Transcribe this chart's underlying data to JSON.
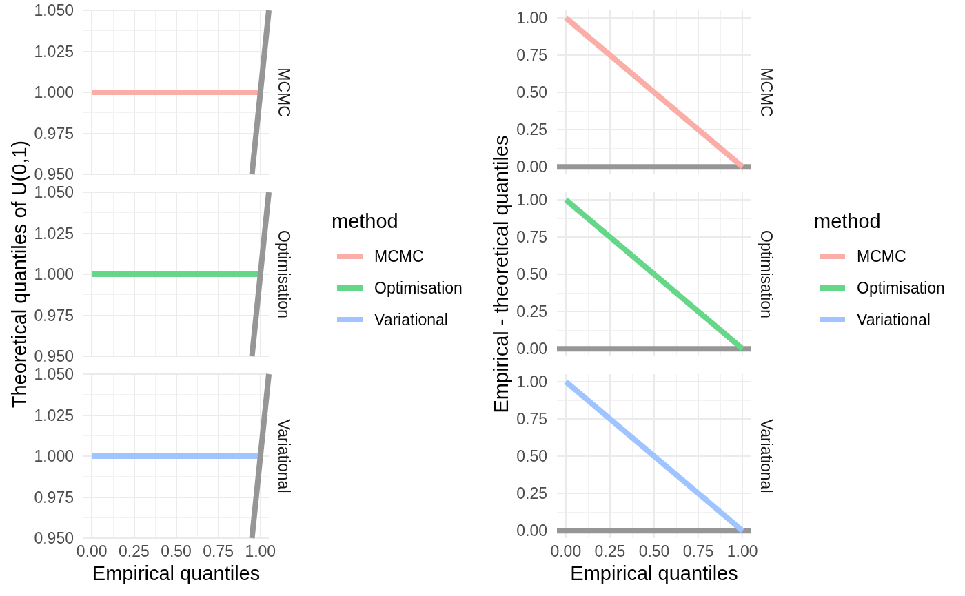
{
  "chart_data": [
    {
      "type": "line",
      "xlim": [
        -0.05,
        1.05
      ],
      "ylim": [
        0.95,
        1.05
      ],
      "yticks": [
        {
          "value": 0.95,
          "label": "0.950"
        },
        0.975,
        {
          "value": 1,
          "label": "1.000"
        },
        1.025,
        {
          "value": 1.05,
          "label": "1.050"
        }
      ],
      "grid": true,
      "marker": "none",
      "tick_labels": "y",
      "series": [
        {
          "name": "MCMC",
          "color": "#fbada7",
          "x": [
            0,
            1
          ],
          "values": [
            1,
            1
          ]
        },
        {
          "color": "#969696",
          "x": [
            0.95,
            1.05
          ],
          "values": [
            0.95,
            1.05
          ]
        }
      ]
    },
    {
      "type": "line",
      "ylabel": "Theoretical quantiles of U(0,1)",
      "legend": "right",
      "legend_title": "method",
      "xlim": [
        -0.05,
        1.05
      ],
      "ylim": [
        0.95,
        1.05
      ],
      "yticks": [
        {
          "value": 0.95,
          "label": "0.950"
        },
        0.975,
        {
          "value": 1,
          "label": "1.000"
        },
        1.025,
        {
          "value": 1.05,
          "label": "1.050"
        }
      ],
      "grid": true,
      "marker": "none",
      "tick_labels": "y",
      "series": [
        {
          "name": "MCMC",
          "color": "#fbada7",
          "values": [
            null,
            null
          ]
        },
        {
          "name": "Optimisation",
          "color": "#66d688",
          "x": [
            0,
            1
          ],
          "values": [
            1,
            1
          ]
        },
        {
          "name": "Variational",
          "color": "#a0c4ff",
          "values": [
            null,
            null
          ]
        },
        {
          "color": "#969696",
          "x": [
            0.95,
            1.05
          ],
          "values": [
            0.95,
            1.05
          ]
        }
      ]
    },
    {
      "type": "line",
      "xlabel": "Empirical quantiles",
      "xlim": [
        -0.05,
        1.05
      ],
      "xticks": [
        {
          "value": 0,
          "label": "0.00"
        },
        {
          "value": 0.25,
          "label": "0.25"
        },
        {
          "value": 0.5,
          "label": "0.50"
        },
        {
          "value": 0.75,
          "label": "0.75"
        },
        {
          "value": 1,
          "label": "1.00"
        }
      ],
      "ylim": [
        0.95,
        1.05
      ],
      "yticks": [
        {
          "value": 0.95,
          "label": "0.950"
        },
        0.975,
        {
          "value": 1,
          "label": "1.000"
        },
        1.025,
        {
          "value": 1.05,
          "label": "1.050"
        }
      ],
      "grid": true,
      "marker": "none",
      "series": [
        {
          "name": "Variational",
          "color": "#a0c4ff",
          "x": [
            0,
            1
          ],
          "values": [
            1,
            1
          ]
        },
        {
          "color": "#969696",
          "x": [
            0.95,
            1.05
          ],
          "values": [
            0.95,
            1.05
          ]
        }
      ]
    },
    {
      "type": "line",
      "xlim": [
        -0.05,
        1.05
      ],
      "ylim": [
        -0.05,
        1.05
      ],
      "yticks": [
        {
          "value": 0,
          "label": "0.00"
        },
        0.25,
        {
          "value": 0.5,
          "label": "0.50"
        },
        0.75,
        {
          "value": 1,
          "label": "1.00"
        }
      ],
      "grid": true,
      "marker": "none",
      "tick_labels": "y",
      "series": [
        {
          "color": "#969696",
          "x": [
            -0.05,
            1.05
          ],
          "values": [
            0,
            0
          ]
        },
        {
          "name": "MCMC",
          "color": "#fbada7",
          "x": [
            0,
            1
          ],
          "values": [
            1,
            0
          ]
        }
      ]
    },
    {
      "type": "line",
      "ylabel": "Empirical - theoretical quantiles",
      "legend": "right",
      "legend_title": "method",
      "xlim": [
        -0.05,
        1.05
      ],
      "ylim": [
        -0.05,
        1.05
      ],
      "yticks": [
        {
          "value": 0,
          "label": "0.00"
        },
        0.25,
        {
          "value": 0.5,
          "label": "0.50"
        },
        0.75,
        {
          "value": 1,
          "label": "1.00"
        }
      ],
      "grid": true,
      "marker": "none",
      "tick_labels": "y",
      "series": [
        {
          "color": "#969696",
          "x": [
            -0.05,
            1.05
          ],
          "values": [
            0,
            0
          ]
        },
        {
          "name": "MCMC",
          "color": "#fbada7",
          "values": [
            null,
            null
          ]
        },
        {
          "name": "Optimisation",
          "color": "#66d688",
          "x": [
            0,
            1
          ],
          "values": [
            1,
            0
          ]
        },
        {
          "name": "Variational",
          "color": "#a0c4ff",
          "values": [
            null,
            null
          ]
        }
      ]
    },
    {
      "type": "line",
      "xlabel": "Empirical quantiles",
      "xlim": [
        -0.05,
        1.05
      ],
      "xticks": [
        {
          "value": 0,
          "label": "0.00"
        },
        {
          "value": 0.25,
          "label": "0.25"
        },
        {
          "value": 0.5,
          "label": "0.50"
        },
        {
          "value": 0.75,
          "label": "0.75"
        },
        {
          "value": 1,
          "label": "1.00"
        }
      ],
      "ylim": [
        -0.05,
        1.05
      ],
      "yticks": [
        {
          "value": 0,
          "label": "0.00"
        },
        0.25,
        {
          "value": 0.5,
          "label": "0.50"
        },
        0.75,
        {
          "value": 1,
          "label": "1.00"
        }
      ],
      "grid": true,
      "marker": "none",
      "series": [
        {
          "color": "#969696",
          "x": [
            -0.05,
            1.05
          ],
          "values": [
            0,
            0
          ]
        },
        {
          "name": "Variational",
          "color": "#a0c4ff",
          "x": [
            0,
            1
          ],
          "values": [
            1,
            0
          ]
        }
      ]
    }
  ]
}
